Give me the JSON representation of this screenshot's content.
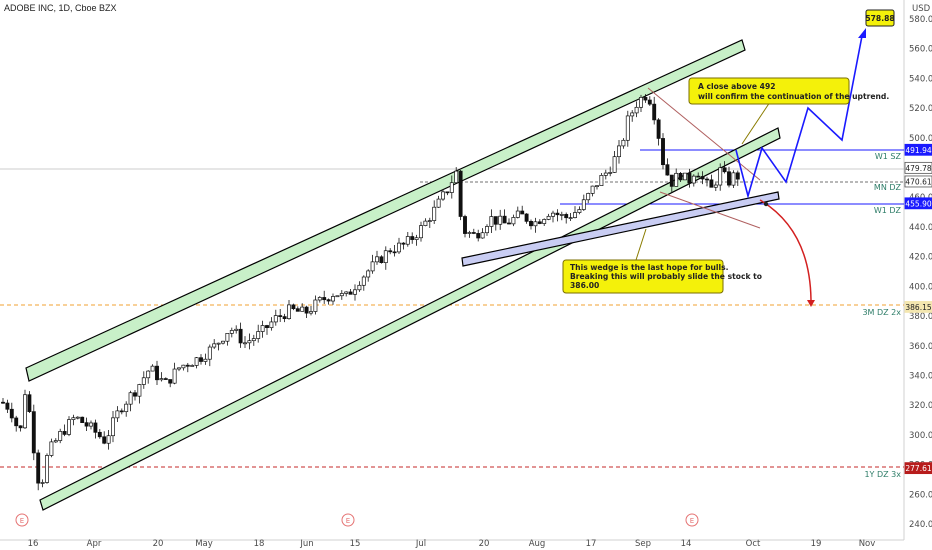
{
  "header": {
    "symbol_line": "ADOBE INC, 1D, Cboe BZX",
    "currency": "USD"
  },
  "chart_data": {
    "type": "candlestick",
    "y_axis": {
      "ticks": [
        580,
        560,
        540,
        520,
        500,
        480,
        460,
        440,
        420,
        400,
        380,
        360,
        340,
        320,
        300,
        280,
        260,
        240
      ],
      "ylim": [
        234,
        588
      ]
    },
    "x_axis": {
      "labels": [
        "16",
        "Apr",
        "20",
        "May",
        "18",
        "Jun",
        "15",
        "Jul",
        "20",
        "Aug",
        "17",
        "Sep",
        "14",
        "Oct",
        "19",
        "Nov"
      ]
    },
    "price_tags": [
      {
        "label": "578.88",
        "value": 578.88,
        "color": "#f4f10a",
        "text_color": "#222"
      },
      {
        "label": "491.94",
        "value": 491.94,
        "color": "#1a1aff",
        "text_color": "#fff"
      },
      {
        "label": "479.78",
        "value": 479.78,
        "color": "#ffffff",
        "text_color": "#222"
      },
      {
        "label": "470.61",
        "value": 470.61,
        "color": "#ffffff",
        "text_color": "#222"
      },
      {
        "label": "455.90",
        "value": 455.9,
        "color": "#1a1aff",
        "text_color": "#fff"
      },
      {
        "label": "386.15",
        "value": 386.15,
        "color": "#f4e7b0",
        "text_color": "#222"
      },
      {
        "label": "277.61",
        "value": 277.61,
        "color": "#b71c1c",
        "text_color": "#fff"
      }
    ],
    "zones": [
      {
        "label": "W1 SZ",
        "value": 491.94
      },
      {
        "label": "MN DZ",
        "value": 468
      },
      {
        "label": "W1 DZ",
        "value": 452
      },
      {
        "label": "3M DZ 2x",
        "value": 383
      },
      {
        "label": "1Y DZ 3x",
        "value": 274
      }
    ],
    "annotations": [
      {
        "lines": [
          "A close above 492",
          "will confirm the continuation of the uptrend."
        ]
      },
      {
        "lines": [
          "This wedge is the last hope for bulls.",
          "Breaking this will probably slide the stock to",
          "386.00"
        ]
      }
    ],
    "event_marker": "E",
    "target_label": "578.88"
  }
}
